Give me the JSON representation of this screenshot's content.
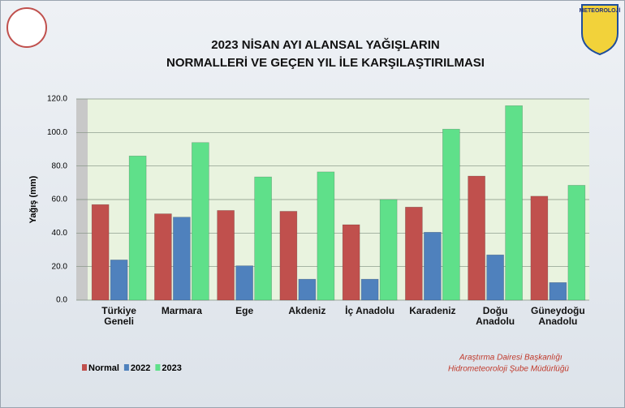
{
  "chart_data": {
    "type": "bar",
    "title": [
      "2023 NİSAN AYI ALANSAL YAĞIŞLARIN",
      "NORMALLERİ VE GEÇEN YIL İLE KARŞILAŞTIRILMASI"
    ],
    "y_label": "Yağış (mm)",
    "categories": [
      "Türkiye\nGeneli",
      "Marmara",
      "Ege",
      "Akdeniz",
      "İç Anadolu",
      "Karadeniz",
      "Doğu\nAnadolu",
      "Güneydoğu\nAnadolu"
    ],
    "series": [
      {
        "name": "Normal",
        "color": "#c0504d",
        "values": [
          57,
          51.5,
          53.5,
          53,
          45,
          55.5,
          74,
          62
        ]
      },
      {
        "name": "2022",
        "color": "#4f81bd",
        "values": [
          24,
          49.5,
          20.5,
          12.5,
          12.5,
          40.5,
          27,
          10.5
        ]
      },
      {
        "name": "2023",
        "color": "#5fe08a",
        "values": [
          86,
          94,
          73.5,
          76.5,
          60,
          102,
          116,
          68.5
        ]
      }
    ],
    "ylim": [
      0,
      120
    ],
    "yticks": [
      {
        "value": 0,
        "label": "0.0"
      },
      {
        "value": 20,
        "label": "20.0"
      },
      {
        "value": 40,
        "label": "40.0"
      },
      {
        "value": 60,
        "label": "60.0"
      },
      {
        "value": 80,
        "label": "80.0"
      },
      {
        "value": 100,
        "label": "100.0"
      },
      {
        "value": 120,
        "label": "120.0"
      }
    ],
    "grid": true,
    "legend": "bottom-left",
    "logo_text": "METEOROLOJİ",
    "footer": [
      "Araştırma Dairesi Başkanlığı",
      "Hidrometeoroloji Şube Müdürlüğü"
    ]
  }
}
